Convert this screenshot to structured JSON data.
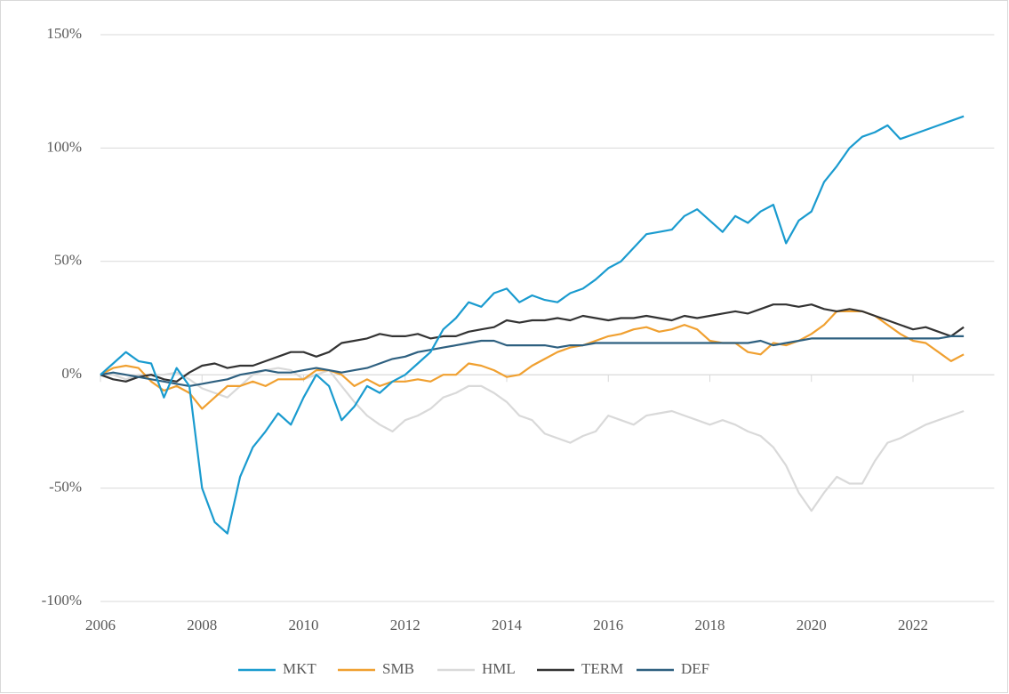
{
  "chart_data": {
    "type": "line",
    "x": [
      2006,
      2006.25,
      2006.5,
      2006.75,
      2007,
      2007.25,
      2007.5,
      2007.75,
      2008,
      2008.25,
      2008.5,
      2008.75,
      2009,
      2009.25,
      2009.5,
      2009.75,
      2010,
      2010.25,
      2010.5,
      2010.75,
      2011,
      2011.25,
      2011.5,
      2011.75,
      2012,
      2012.25,
      2012.5,
      2012.75,
      2013,
      2013.25,
      2013.5,
      2013.75,
      2014,
      2014.25,
      2014.5,
      2014.75,
      2015,
      2015.25,
      2015.5,
      2015.75,
      2016,
      2016.25,
      2016.5,
      2016.75,
      2017,
      2017.25,
      2017.5,
      2017.75,
      2018,
      2018.25,
      2018.5,
      2018.75,
      2019,
      2019.25,
      2019.5,
      2019.75,
      2020,
      2020.25,
      2020.5,
      2020.75,
      2021,
      2021.25,
      2021.5,
      2021.75,
      2022,
      2022.25,
      2022.5,
      2022.75,
      2023
    ],
    "series": [
      {
        "name": "MKT",
        "color": "#1a9bcf",
        "values": [
          0,
          5,
          10,
          6,
          5,
          -10,
          3,
          -5,
          -50,
          -65,
          -70,
          -45,
          -32,
          -25,
          -17,
          -22,
          -10,
          0,
          -5,
          -20,
          -14,
          -5,
          -8,
          -3,
          0,
          5,
          10,
          20,
          25,
          32,
          30,
          36,
          38,
          32,
          35,
          33,
          32,
          36,
          38,
          42,
          47,
          50,
          56,
          62,
          63,
          64,
          70,
          73,
          68,
          63,
          70,
          67,
          72,
          75,
          58,
          68,
          72,
          85,
          92,
          100,
          105,
          107,
          110,
          104,
          106,
          108,
          110,
          112,
          114
        ]
      },
      {
        "name": "SMB",
        "color": "#f0a030",
        "values": [
          0,
          3,
          4,
          3,
          -3,
          -7,
          -5,
          -8,
          -15,
          -10,
          -5,
          -5,
          -3,
          -5,
          -2,
          -2,
          -2,
          2,
          2,
          0,
          -5,
          -2,
          -5,
          -3,
          -3,
          -2,
          -3,
          0,
          0,
          5,
          4,
          2,
          -1,
          0,
          4,
          7,
          10,
          12,
          13,
          15,
          17,
          18,
          20,
          21,
          19,
          20,
          22,
          20,
          15,
          14,
          14,
          10,
          9,
          14,
          13,
          15,
          18,
          22,
          28,
          28,
          28,
          26,
          22,
          18,
          15,
          14,
          10,
          6,
          9
        ]
      },
      {
        "name": "HML",
        "color": "#d9d9d9",
        "values": [
          0,
          0,
          -2,
          0,
          0,
          0,
          1,
          -2,
          -6,
          -8,
          -10,
          -5,
          0,
          2,
          3,
          2,
          -2,
          0,
          2,
          -5,
          -12,
          -18,
          -22,
          -25,
          -20,
          -18,
          -15,
          -10,
          -8,
          -5,
          -5,
          -8,
          -12,
          -18,
          -20,
          -26,
          -28,
          -30,
          -27,
          -25,
          -18,
          -20,
          -22,
          -18,
          -17,
          -16,
          -18,
          -20,
          -22,
          -20,
          -22,
          -25,
          -27,
          -32,
          -40,
          -52,
          -60,
          -52,
          -45,
          -48,
          -48,
          -38,
          -30,
          -28,
          -25,
          -22,
          -20,
          -18,
          -16
        ]
      },
      {
        "name": "TERM",
        "color": "#333333",
        "values": [
          0,
          -2,
          -3,
          -1,
          0,
          -2,
          -3,
          1,
          4,
          5,
          3,
          4,
          4,
          6,
          8,
          10,
          10,
          8,
          10,
          14,
          15,
          16,
          18,
          17,
          17,
          18,
          16,
          17,
          17,
          19,
          20,
          21,
          24,
          23,
          24,
          24,
          25,
          24,
          26,
          25,
          24,
          25,
          25,
          26,
          25,
          24,
          26,
          25,
          26,
          27,
          28,
          27,
          29,
          31,
          31,
          30,
          31,
          29,
          28,
          29,
          28,
          26,
          24,
          22,
          20,
          21,
          19,
          17,
          21
        ]
      },
      {
        "name": "DEF",
        "color": "#2e6080",
        "values": [
          0,
          1,
          0,
          -1,
          -2,
          -3,
          -4,
          -5,
          -4,
          -3,
          -2,
          0,
          1,
          2,
          1,
          1,
          2,
          3,
          2,
          1,
          2,
          3,
          5,
          7,
          8,
          10,
          11,
          12,
          13,
          14,
          15,
          15,
          13,
          13,
          13,
          13,
          12,
          13,
          13,
          14,
          14,
          14,
          14,
          14,
          14,
          14,
          14,
          14,
          14,
          14,
          14,
          14,
          15,
          13,
          14,
          15,
          16,
          16,
          16,
          16,
          16,
          16,
          16,
          16,
          16,
          16,
          16,
          17,
          17
        ]
      }
    ],
    "xlim": [
      2006,
      2023.6
    ],
    "xticks": [
      2006,
      2008,
      2010,
      2012,
      2014,
      2016,
      2018,
      2020,
      2022
    ],
    "ylim": [
      -100,
      150
    ],
    "yticks": [
      {
        "value": -100,
        "label": "-100%"
      },
      {
        "value": -50,
        "label": "-50%"
      },
      {
        "value": 0,
        "label": "0%"
      },
      {
        "value": 50,
        "label": "50%"
      },
      {
        "value": 100,
        "label": "100%"
      },
      {
        "value": 150,
        "label": "150%"
      }
    ],
    "grid": true,
    "legend": "bottom"
  }
}
